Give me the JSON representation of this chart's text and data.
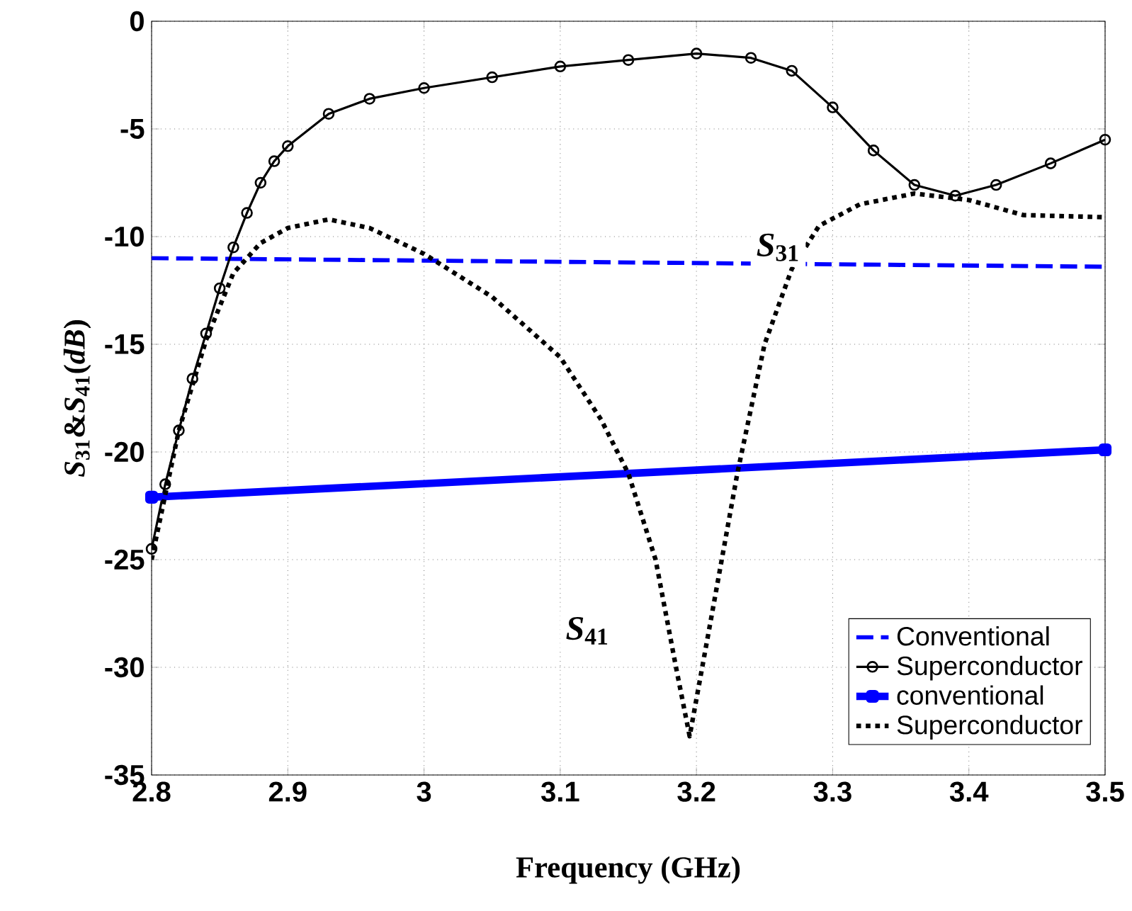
{
  "chart_data": {
    "type": "line",
    "xlabel": "Frequency (GHz)",
    "ylabel": "*S*$_{31}$&*S*$_{41}$(*dB*)",
    "xlim": [
      2.8,
      3.5
    ],
    "ylim": [
      -35,
      0
    ],
    "xticks": [
      2.8,
      2.9,
      3,
      3.1,
      3.2,
      3.3,
      3.4,
      3.5
    ],
    "yticks": [
      -35,
      -30,
      -25,
      -20,
      -15,
      -10,
      -5,
      0
    ],
    "grid": true,
    "legend": "bottom right",
    "series": [
      {
        "name": "Conventional",
        "color": "#0000ff",
        "line_style": "dashed",
        "marker": "none",
        "x": [
          2.8,
          3.5
        ],
        "values": [
          -11,
          -11.4
        ]
      },
      {
        "name": "Superconductor",
        "color": "#000000",
        "line_style": "solid",
        "marker": "circle",
        "x": [
          2.8,
          2.81,
          2.82,
          2.83,
          2.84,
          2.85,
          2.86,
          2.87,
          2.88,
          2.89,
          2.9,
          2.93,
          2.96,
          3.0,
          3.05,
          3.1,
          3.15,
          3.2,
          3.24,
          3.27,
          3.3,
          3.33,
          3.36,
          3.39,
          3.42,
          3.46,
          3.5
        ],
        "values": [
          -24.5,
          -21.5,
          -19,
          -16.6,
          -14.5,
          -12.4,
          -10.5,
          -8.9,
          -7.5,
          -6.5,
          -5.8,
          -4.3,
          -3.6,
          -3.1,
          -2.6,
          -2.1,
          -1.8,
          -1.5,
          -1.7,
          -2.3,
          -4.0,
          -6.0,
          -7.6,
          -8.1,
          -7.6,
          -6.6,
          -5.5
        ]
      },
      {
        "name": "conventional",
        "color": "#0000ff",
        "line_style": "solid",
        "marker": "square",
        "x": [
          2.8,
          3.5
        ],
        "values": [
          -22.1,
          -19.9
        ]
      },
      {
        "name": "Superconductor",
        "color": "#000000",
        "line_style": "dotted",
        "marker": "none",
        "x": [
          2.8,
          2.82,
          2.84,
          2.86,
          2.88,
          2.9,
          2.93,
          2.96,
          3.0,
          3.05,
          3.1,
          3.13,
          3.15,
          3.17,
          3.185,
          3.195,
          3.21,
          3.23,
          3.25,
          3.27,
          3.29,
          3.32,
          3.36,
          3.4,
          3.44,
          3.5
        ],
        "values": [
          -25,
          -19,
          -14.8,
          -11.7,
          -10.3,
          -9.6,
          -9.2,
          -9.6,
          -10.8,
          -12.8,
          -15.6,
          -18.5,
          -21,
          -25,
          -30,
          -33.2,
          -28,
          -21,
          -15,
          -11.5,
          -9.5,
          -8.5,
          -8.0,
          -8.3,
          -9.0,
          -9.1
        ]
      }
    ],
    "annotations": [
      {
        "text": "*S*$_{31}$",
        "x": 3.26,
        "y": -10.5
      },
      {
        "text": "*S*$_{41}$",
        "x": 3.12,
        "y": -28.3
      }
    ]
  }
}
